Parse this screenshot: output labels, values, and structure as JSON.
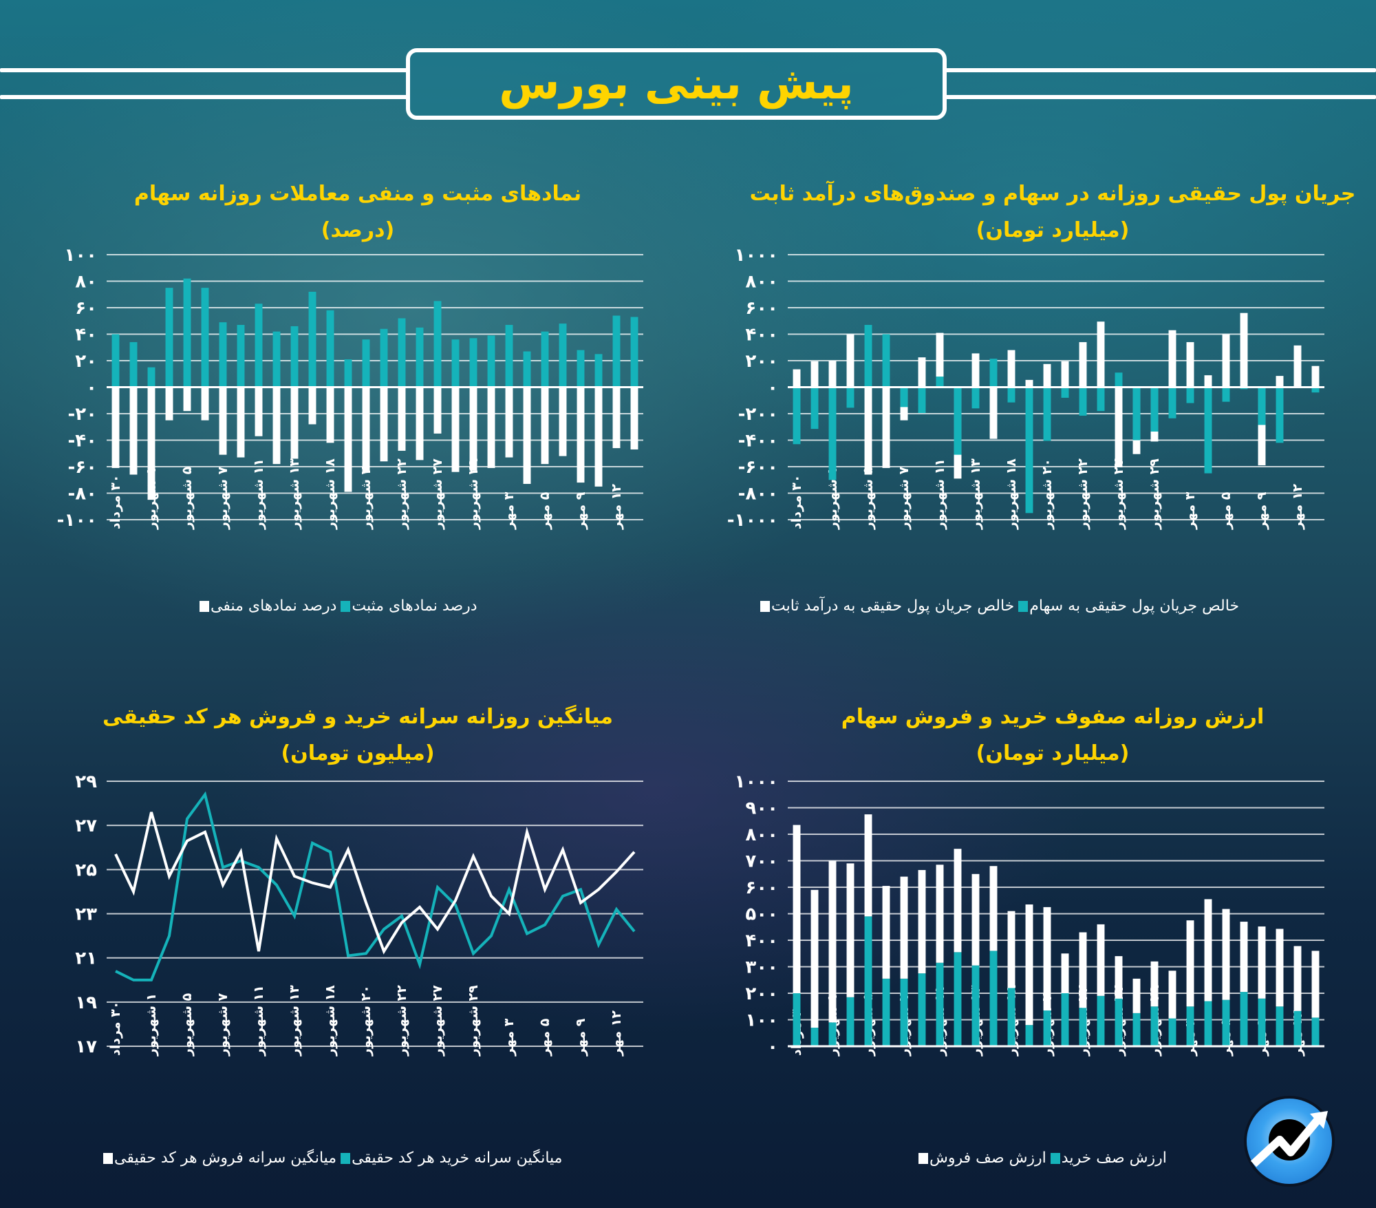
{
  "header": {
    "title": "پیش بینی بورس"
  },
  "colors": {
    "title_yellow": "#ffd400",
    "teal": "#15b3ba",
    "white": "#ffffff",
    "grid": "rgba(255,255,255,0.7)"
  },
  "x_labels": [
    "۳۰ مرداد",
    "۱ شهریور",
    "۵ شهریور",
    "۷ شهریور",
    "۱۱ شهریور",
    "۱۳ شهریور",
    "۱۸ شهریور",
    "۲۰ شهریور",
    "۲۲ شهریور",
    "۲۷ شهریور",
    "۲۹ شهریور",
    "۳ مهر",
    "۵ مهر",
    "۹ مهر",
    "۱۲ مهر"
  ],
  "charts": {
    "symbols": {
      "title": "نمادهای مثبت و منفی معاملات روزانه سهام",
      "subtitle": "(درصد)",
      "legend": [
        {
          "label": "درصد نمادهای مثبت",
          "color": "#15b3ba"
        },
        {
          "label": "درصد نمادهای منفی",
          "color": "#ffffff"
        }
      ]
    },
    "flow": {
      "title": "جریان پول حقیقی روزانه در سهام و صندوق‌های درآمد ثابت",
      "subtitle": "(میلیارد تومان)",
      "legend": [
        {
          "label": "خالص جریان پول حقیقی به سهام",
          "color": "#15b3ba"
        },
        {
          "label": "خالص جریان پول حقیقی به درآمد ثابت",
          "color": "#ffffff"
        }
      ]
    },
    "percapita": {
      "title": "میانگین روزانه سرانه خرید و فروش هر کد حقیقی",
      "subtitle": "(میلیون تومان)",
      "legend": [
        {
          "label": "میانگین سرانه خرید هر کد حقیقی",
          "color": "#15b3ba"
        },
        {
          "label": "میانگین سرانه فروش هر کد حقیقی",
          "color": "#ffffff"
        }
      ]
    },
    "queues": {
      "title": "ارزش روزانه صفوف خرید و فروش سهام",
      "subtitle": "(میلیارد تومان)",
      "legend": [
        {
          "label": "ارزش صف خرید",
          "color": "#15b3ba"
        },
        {
          "label": "ارزش صف فروش",
          "color": "#ffffff"
        }
      ]
    }
  },
  "chart_data": [
    {
      "id": "symbols",
      "type": "bar",
      "title": "نمادهای مثبت و منفی معاملات روزانه سهام (درصد)",
      "xlabel": "",
      "ylabel": "درصد",
      "ylim": [
        -100,
        100
      ],
      "yticks": [
        "۱۰۰",
        "۸۰",
        "۶۰",
        "۴۰",
        "۲۰",
        "۰",
        "-۲۰",
        "-۴۰",
        "-۶۰",
        "-۸۰",
        "-۱۰۰"
      ],
      "grid": true,
      "legend_position": "bottom",
      "x_tick_labels_every": 2,
      "series": [
        {
          "name": "درصد نمادهای مثبت",
          "color": "#15b3ba",
          "values": [
            40,
            34,
            15,
            75,
            82,
            75,
            49,
            47,
            63,
            42,
            46,
            72,
            58,
            21,
            36,
            44,
            52,
            45,
            65,
            36,
            37,
            39,
            47,
            27,
            42,
            48,
            28,
            25,
            54,
            53
          ]
        },
        {
          "name": "درصد نمادهای منفی",
          "color": "#ffffff",
          "values": [
            -61,
            -66,
            -85,
            -25,
            -18,
            -25,
            -51,
            -53,
            -37,
            -58,
            -54,
            -28,
            -42,
            -79,
            -64,
            -56,
            -48,
            -55,
            -35,
            -64,
            -63,
            -61,
            -53,
            -73,
            -58,
            -52,
            -72,
            -75,
            -46,
            -47
          ]
        }
      ]
    },
    {
      "id": "flow",
      "type": "bar",
      "title": "جریان پول حقیقی روزانه در سهام و صندوق‌های درآمد ثابت (میلیارد تومان)",
      "xlabel": "",
      "ylabel": "میلیارد تومان",
      "ylim": [
        -1000,
        1000
      ],
      "yticks": [
        "۱۰۰۰",
        "۸۰۰",
        "۶۰۰",
        "۴۰۰",
        "۲۰۰",
        "۰",
        "-۲۰۰",
        "-۴۰۰",
        "-۶۰۰",
        "-۸۰۰",
        "-۱۰۰۰"
      ],
      "grid": true,
      "legend_position": "bottom",
      "overlapped": true,
      "series": [
        {
          "name": "خالص جریان پول حقیقی به سهام",
          "color": "#15b3ba",
          "values": [
            -430,
            -315,
            -700,
            -155,
            470,
            400,
            -150,
            -195,
            80,
            -510,
            -160,
            215,
            -115,
            -950,
            -405,
            -80,
            -215,
            -180,
            110,
            -400,
            -335,
            -235,
            -120,
            -650,
            -110,
            -15,
            -285,
            -420,
            0,
            -40
          ]
        },
        {
          "name": "خالص جریان پول حقیقی به درآمد ثابت",
          "color": "#ffffff",
          "values": [
            135,
            195,
            200,
            400,
            -660,
            -610,
            -250,
            225,
            410,
            -690,
            255,
            -390,
            280,
            55,
            175,
            195,
            340,
            495,
            -605,
            -505,
            -410,
            430,
            340,
            90,
            400,
            560,
            -590,
            85,
            315,
            160
          ]
        }
      ]
    },
    {
      "id": "percapita",
      "type": "line",
      "title": "میانگین روزانه سرانه خرید و فروش هر کد حقیقی (میلیون تومان)",
      "xlabel": "",
      "ylabel": "میلیون تومان",
      "ylim": [
        17,
        29
      ],
      "yticks": [
        "۲۹",
        "۲۷",
        "۲۵",
        "۲۳",
        "۲۱",
        "۱۹",
        "۱۷"
      ],
      "grid": true,
      "legend_position": "bottom",
      "series": [
        {
          "name": "میانگین سرانه خرید هر کد حقیقی",
          "color": "#15b3ba",
          "values": [
            20.4,
            20.0,
            20.0,
            22.0,
            27.3,
            28.4,
            25.1,
            25.4,
            25.1,
            24.3,
            22.9,
            26.2,
            25.8,
            21.1,
            21.2,
            22.3,
            22.9,
            20.7,
            24.2,
            23.4,
            21.2,
            22.0,
            24.1,
            22.1,
            22.5,
            23.8,
            24.1,
            21.6,
            23.2,
            22.2
          ]
        },
        {
          "name": "میانگین سرانه فروش هر کد حقیقی",
          "color": "#ffffff",
          "values": [
            25.7,
            24.0,
            27.6,
            24.7,
            26.3,
            26.7,
            24.3,
            25.8,
            21.3,
            26.4,
            24.7,
            24.4,
            24.2,
            25.9,
            23.5,
            21.3,
            22.6,
            23.3,
            22.3,
            23.6,
            25.6,
            23.8,
            23.0,
            26.7,
            24.1,
            25.9,
            23.5,
            24.1,
            24.9,
            25.8
          ]
        }
      ]
    },
    {
      "id": "queues",
      "type": "bar",
      "stacked": true,
      "title": "ارزش روزانه صفوف خرید و فروش سهام (میلیارد تومان)",
      "xlabel": "",
      "ylabel": "میلیارد تومان",
      "ylim": [
        0,
        1000
      ],
      "yticks": [
        "۱۰۰۰",
        "۹۰۰",
        "۸۰۰",
        "۷۰۰",
        "۶۰۰",
        "۵۰۰",
        "۴۰۰",
        "۳۰۰",
        "۲۰۰",
        "۱۰۰",
        "۰"
      ],
      "grid": true,
      "legend_position": "bottom",
      "series": [
        {
          "name": "ارزش صف خرید",
          "color": "#15b3ba",
          "values": [
            200,
            70,
            90,
            185,
            490,
            255,
            255,
            275,
            315,
            355,
            305,
            360,
            220,
            80,
            135,
            200,
            145,
            190,
            180,
            125,
            150,
            105,
            150,
            170,
            175,
            205,
            180,
            150,
            133,
            108
          ]
        },
        {
          "name": "ارزش صف فروش",
          "color": "#ffffff",
          "values": [
            635,
            520,
            610,
            505,
            385,
            350,
            385,
            390,
            370,
            390,
            345,
            320,
            290,
            455,
            390,
            150,
            285,
            270,
            160,
            130,
            170,
            180,
            325,
            385,
            343,
            265,
            272,
            293,
            245,
            252
          ]
        }
      ]
    }
  ]
}
